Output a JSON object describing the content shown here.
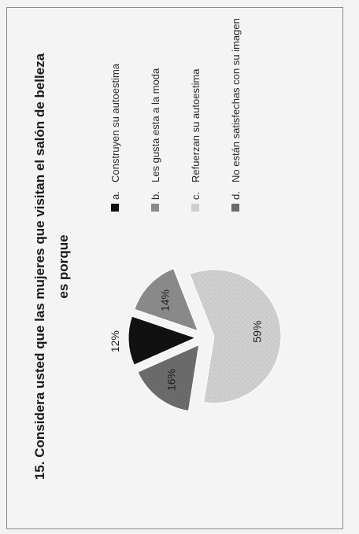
{
  "chart_data": {
    "type": "pie",
    "title": "15. Considera usted que las mujeres que visitan el salón de belleza es porque",
    "legend_position": "right",
    "slices": [
      {
        "marker": "a.",
        "label": "Construyen su autoestima",
        "value": 12,
        "value_label": "12%",
        "color": "#111111",
        "exploded": true
      },
      {
        "marker": "b.",
        "label": "Les gusta esta a la moda",
        "value": 14,
        "value_label": "14%",
        "color": "#8a8a8a",
        "exploded": true
      },
      {
        "marker": "c.",
        "label": "Refuerzan su autoestima",
        "value": 59,
        "value_label": "59%",
        "color": "#cfcfcf",
        "exploded": true
      },
      {
        "marker": "d.",
        "label": "No están satisfechas con su imagen",
        "value": 16,
        "value_label": "16%",
        "color": "#6b6b6b",
        "exploded": true
      }
    ]
  }
}
